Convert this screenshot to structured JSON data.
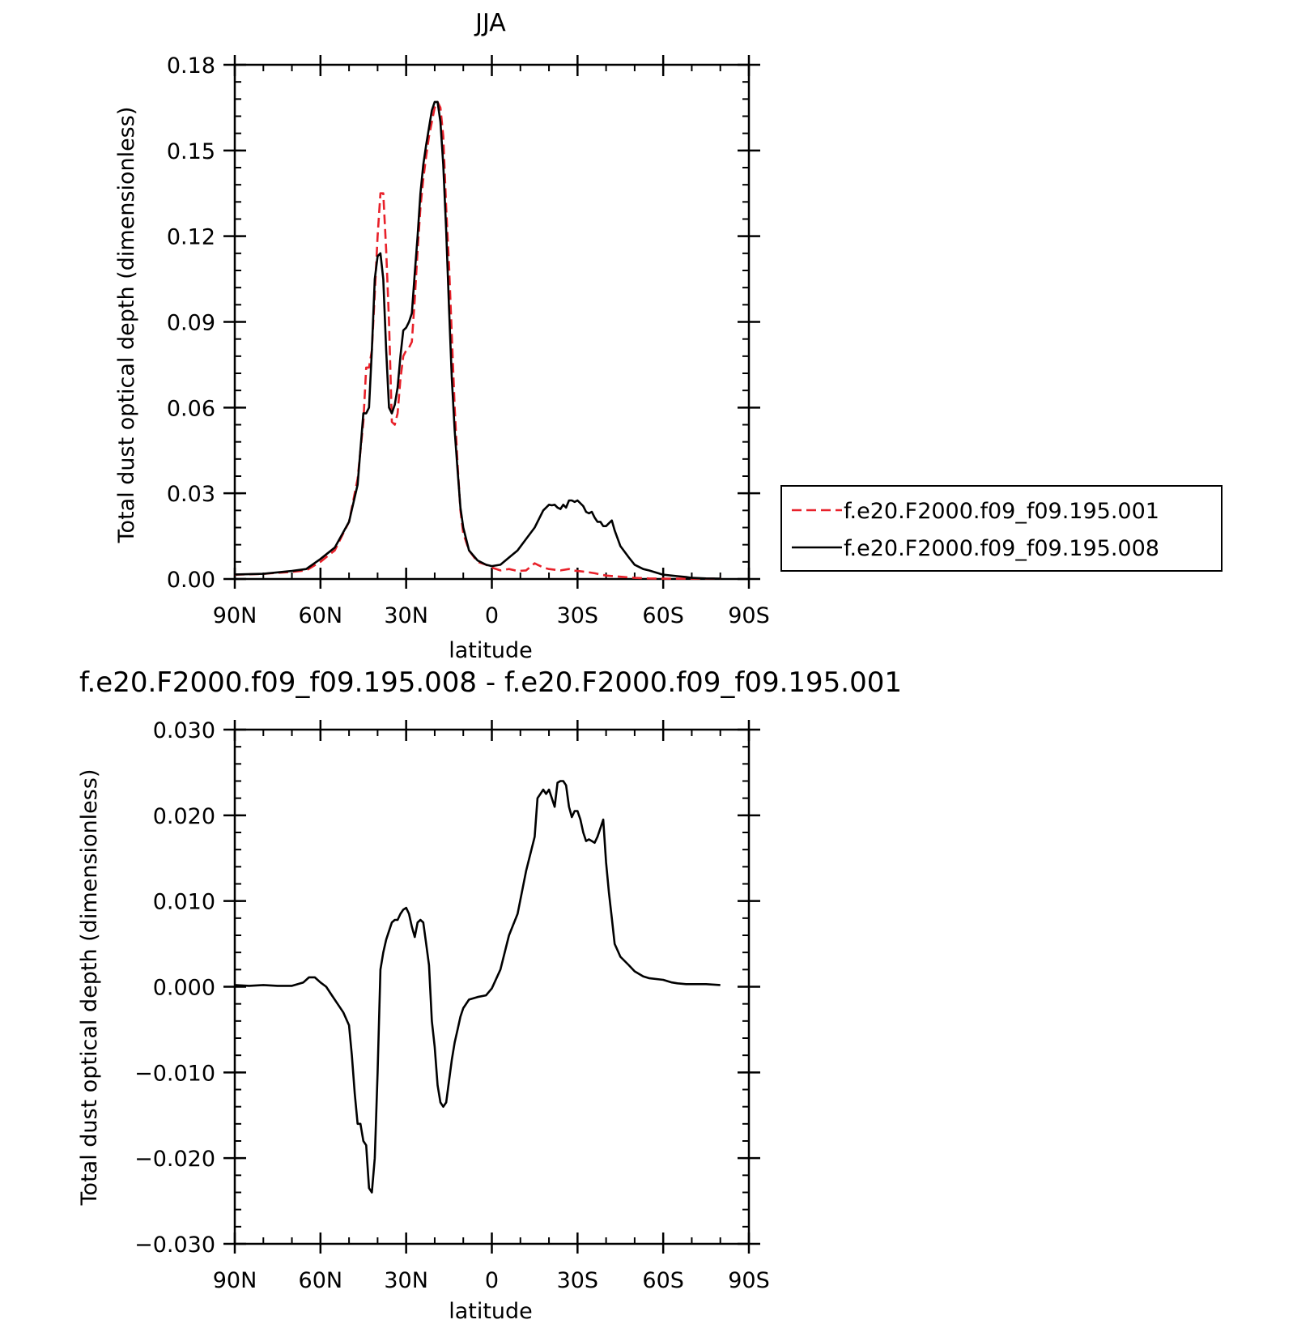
{
  "chart_data": [
    {
      "type": "line",
      "title": "JJA",
      "xlabel": "latitude",
      "ylabel": "Total dust optical depth (dimensionless)",
      "x_axis": "latitude in degrees (positive = N, negative = S)",
      "xlim": [
        90,
        -90
      ],
      "ylim": [
        0,
        0.18
      ],
      "x_ticks": [
        {
          "value": 90,
          "label": "90N"
        },
        {
          "value": 60,
          "label": "60N"
        },
        {
          "value": 30,
          "label": "30N"
        },
        {
          "value": 0,
          "label": "0"
        },
        {
          "value": -30,
          "label": "30S"
        },
        {
          "value": -60,
          "label": "60S"
        },
        {
          "value": -90,
          "label": "90S"
        }
      ],
      "y_ticks": [
        {
          "value": 0,
          "label": "0.00"
        },
        {
          "value": 0.03,
          "label": "0.03"
        },
        {
          "value": 0.06,
          "label": "0.06"
        },
        {
          "value": 0.09,
          "label": "0.09"
        },
        {
          "value": 0.12,
          "label": "0.12"
        },
        {
          "value": 0.15,
          "label": "0.15"
        },
        {
          "value": 0.18,
          "label": "0.18"
        }
      ],
      "grid": false,
      "legend_position": "right",
      "series": [
        {
          "name": "f.e20.F2000.f09_f09.195.001",
          "color": "#e8212a",
          "dash": "dashed",
          "x": [
            90,
            80,
            70,
            65,
            60,
            55,
            50,
            47,
            45,
            44,
            43,
            42,
            41,
            40,
            39,
            38,
            37,
            36,
            35,
            34,
            33,
            32,
            31,
            30,
            29,
            28,
            27,
            26,
            25,
            24,
            23,
            22,
            21,
            20,
            19,
            18,
            17,
            16,
            15,
            14,
            13,
            12,
            11,
            10,
            8,
            5,
            2,
            0,
            -3,
            -6,
            -9,
            -12,
            -15,
            -16,
            -17,
            -18,
            -20,
            -24,
            -27,
            -28,
            -30,
            -33,
            -36,
            -40,
            -45,
            -50,
            -55,
            -60,
            -65,
            -70,
            -75,
            -80
          ],
          "values": [
            0.0015,
            0.0018,
            0.0025,
            0.003,
            0.006,
            0.01,
            0.02,
            0.035,
            0.055,
            0.074,
            0.074,
            0.08,
            0.1,
            0.12,
            0.135,
            0.135,
            0.115,
            0.09,
            0.055,
            0.054,
            0.058,
            0.07,
            0.078,
            0.08,
            0.081,
            0.083,
            0.098,
            0.115,
            0.13,
            0.14,
            0.148,
            0.155,
            0.16,
            0.165,
            0.167,
            0.165,
            0.155,
            0.13,
            0.11,
            0.085,
            0.06,
            0.04,
            0.024,
            0.016,
            0.01,
            0.006,
            0.005,
            0.004,
            0.003,
            0.0035,
            0.0028,
            0.003,
            0.0055,
            0.005,
            0.0045,
            0.004,
            0.0035,
            0.003,
            0.0035,
            0.003,
            0.0028,
            0.0025,
            0.002,
            0.0012,
            0.0008,
            0.0004,
            0.0002,
            0.0001,
            0.0001,
            0.0001,
            0.0001,
            0.0001
          ]
        },
        {
          "name": "f.e20.F2000.f09_f09.195.008",
          "color": "#000000",
          "dash": "solid",
          "x": [
            90,
            80,
            70,
            65,
            60,
            55,
            50,
            47,
            45,
            44,
            43,
            42,
            41,
            40,
            39,
            38,
            37,
            36,
            35,
            34,
            33,
            32,
            31,
            30,
            29,
            28,
            27,
            26,
            25,
            24,
            23,
            22,
            21,
            20,
            19,
            18,
            17,
            16,
            15,
            14,
            13,
            12,
            11,
            10,
            8,
            5,
            2,
            0,
            -3,
            -6,
            -9,
            -12,
            -15,
            -18,
            -20,
            -21,
            -22,
            -23,
            -24,
            -25,
            -26,
            -27,
            -28,
            -29,
            -30,
            -31,
            -32,
            -33,
            -34,
            -35,
            -36,
            -37,
            -38,
            -39,
            -40,
            -41,
            -42,
            -43,
            -45,
            -48,
            -50,
            -53,
            -55,
            -60,
            -63,
            -65,
            -68,
            -70,
            -75,
            -80
          ],
          "values": [
            0.0016,
            0.0018,
            0.0028,
            0.0035,
            0.007,
            0.011,
            0.02,
            0.033,
            0.058,
            0.058,
            0.06,
            0.08,
            0.105,
            0.113,
            0.114,
            0.105,
            0.08,
            0.06,
            0.058,
            0.061,
            0.067,
            0.078,
            0.087,
            0.088,
            0.09,
            0.093,
            0.107,
            0.12,
            0.135,
            0.145,
            0.152,
            0.158,
            0.164,
            0.167,
            0.167,
            0.16,
            0.145,
            0.122,
            0.095,
            0.07,
            0.052,
            0.038,
            0.025,
            0.018,
            0.01,
            0.0065,
            0.005,
            0.0045,
            0.005,
            0.0075,
            0.01,
            0.014,
            0.018,
            0.024,
            0.026,
            0.0258,
            0.026,
            0.025,
            0.0245,
            0.026,
            0.025,
            0.0275,
            0.0275,
            0.027,
            0.0275,
            0.0265,
            0.0255,
            0.0235,
            0.023,
            0.0235,
            0.0215,
            0.02,
            0.02,
            0.0185,
            0.0185,
            0.0195,
            0.0205,
            0.017,
            0.0115,
            0.0075,
            0.005,
            0.0035,
            0.003,
            0.0015,
            0.0012,
            0.001,
            0.0007,
            0.0004,
            0.0002,
            0.0001
          ]
        }
      ]
    },
    {
      "type": "line",
      "title": "f.e20.F2000.f09_f09.195.008 - f.e20.F2000.f09_f09.195.001",
      "xlabel": "latitude",
      "ylabel": "Total dust optical depth (dimensionless)",
      "x_axis": "latitude in degrees (positive = N, negative = S)",
      "xlim": [
        90,
        -90
      ],
      "ylim": [
        -0.03,
        0.03
      ],
      "x_ticks": [
        {
          "value": 90,
          "label": "90N"
        },
        {
          "value": 60,
          "label": "60N"
        },
        {
          "value": 30,
          "label": "30N"
        },
        {
          "value": 0,
          "label": "0"
        },
        {
          "value": -30,
          "label": "30S"
        },
        {
          "value": -60,
          "label": "60S"
        },
        {
          "value": -90,
          "label": "90S"
        }
      ],
      "y_ticks": [
        {
          "value": -0.03,
          "label": "−0.030"
        },
        {
          "value": -0.02,
          "label": "−0.020"
        },
        {
          "value": -0.01,
          "label": "−0.010"
        },
        {
          "value": 0,
          "label": "0.000"
        },
        {
          "value": 0.01,
          "label": "0.010"
        },
        {
          "value": 0.02,
          "label": "0.020"
        },
        {
          "value": 0.03,
          "label": "0.030"
        }
      ],
      "grid": false,
      "series": [
        {
          "name": "",
          "color": "#000000",
          "dash": "solid",
          "x": [
            90,
            85,
            80,
            75,
            70,
            66,
            64,
            62,
            60,
            58,
            56,
            54,
            52,
            50,
            49,
            48,
            47,
            46,
            45,
            44,
            43,
            42,
            41,
            40,
            39,
            38,
            37,
            36,
            35,
            34,
            33,
            32,
            31,
            30,
            29,
            28,
            27,
            26,
            25,
            24,
            23,
            22,
            21,
            20,
            19,
            18,
            17,
            16,
            15,
            14,
            13,
            12,
            11,
            10,
            8,
            5,
            2,
            0,
            -3,
            -6,
            -9,
            -12,
            -15,
            -16,
            -17,
            -18,
            -19,
            -20,
            -21,
            -22,
            -23,
            -24,
            -25,
            -26,
            -27,
            -28,
            -29,
            -30,
            -31,
            -32,
            -33,
            -34,
            -35,
            -36,
            -37,
            -38,
            -39,
            -40,
            -41,
            -42,
            -43,
            -45,
            -48,
            -50,
            -53,
            -55,
            -60,
            -63,
            -65,
            -68,
            -70,
            -75,
            -80
          ],
          "values": [
            0.0002,
            0.0001,
            0.0002,
            0.0001,
            0.0001,
            0.0005,
            0.0011,
            0.0011,
            0.0005,
            0,
            -0.001,
            -0.002,
            -0.003,
            -0.0045,
            -0.008,
            -0.0125,
            -0.016,
            -0.016,
            -0.018,
            -0.0185,
            -0.0235,
            -0.024,
            -0.02,
            -0.01,
            0.002,
            0.004,
            0.0055,
            0.0065,
            0.0075,
            0.0078,
            0.0078,
            0.0085,
            0.009,
            0.0092,
            0.0085,
            0.007,
            0.0058,
            0.0075,
            0.0078,
            0.0075,
            0.005,
            0.0025,
            -0.004,
            -0.007,
            -0.0115,
            -0.0135,
            -0.014,
            -0.0135,
            -0.011,
            -0.0085,
            -0.0065,
            -0.005,
            -0.0035,
            -0.0025,
            -0.0015,
            -0.0012,
            -0.001,
            -0.0002,
            0.002,
            0.006,
            0.0085,
            0.0135,
            0.0175,
            0.022,
            0.0225,
            0.023,
            0.0225,
            0.023,
            0.022,
            0.021,
            0.0238,
            0.024,
            0.024,
            0.0235,
            0.021,
            0.0198,
            0.0205,
            0.0205,
            0.0195,
            0.018,
            0.017,
            0.0172,
            0.017,
            0.0168,
            0.0175,
            0.0185,
            0.0195,
            0.0145,
            0.011,
            0.008,
            0.005,
            0.0035,
            0.0025,
            0.0018,
            0.0012,
            0.001,
            0.0008,
            0.0005,
            0.0004,
            0.0003,
            0.0003,
            0.0003,
            0.0002
          ]
        }
      ]
    }
  ]
}
